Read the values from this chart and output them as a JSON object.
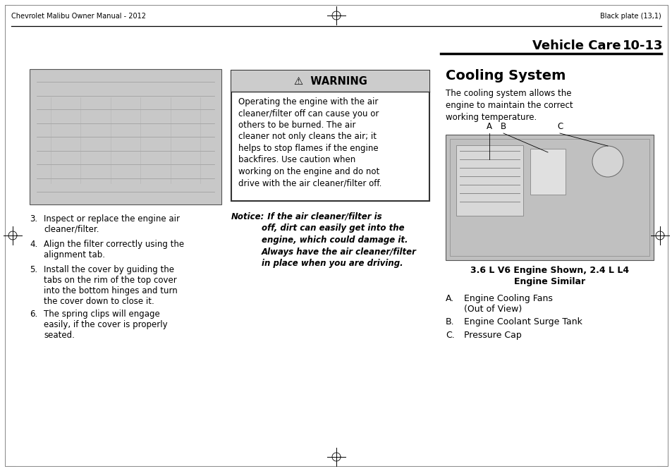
{
  "page_title_left": "Chevrolet Malibu Owner Manual - 2012",
  "page_title_right": "Black plate (13,1)",
  "section_header": "Vehicle Care",
  "section_number": "10-13",
  "cooling_system_title": "Cooling System",
  "cooling_system_intro": "The cooling system allows the\nengine to maintain the correct\nworking temperature.",
  "engine_caption_line1": "3.6 L V6 Engine Shown, 2.4 L L4",
  "engine_caption_line2": "Engine Similar",
  "label_A_text1": "Engine Cooling Fans",
  "label_A_text2": "(Out of View)",
  "label_B_text": "Engine Coolant Surge Tank",
  "label_C_text": "Pressure Cap",
  "warning_title": "⚠  WARNING",
  "warning_body": "Operating the engine with the air\ncleaner/filter off can cause you or\nothers to be burned. The air\ncleaner not only cleans the air; it\nhelps to stop flames if the engine\nbackfires. Use caution when\nworking on the engine and do not\ndrive with the air cleaner/filter off.",
  "notice_label": "Notice:",
  "notice_body": "  If the air cleaner/filter is\noff, dirt can easily get into the\nengine, which could damage it.\nAlways have the air cleaner/filter\nin place when you are driving.",
  "step3_num": "3.",
  "step3_text": "Inspect or replace the engine air\ncleaner/filter.",
  "step4_num": "4.",
  "step4_text": "Align the filter correctly using the\nalignment tab.",
  "step5_num": "5.",
  "step5_text": "Install the cover by guiding the\ntabs on the rim of the top cover\ninto the bottom hinges and turn\nthe cover down to close it.",
  "step6_num": "6.",
  "step6_text": "The spring clips will engage\neasily, if the cover is properly\nseated.",
  "bg_color": "#ffffff",
  "text_color": "#000000",
  "warning_header_bg": "#cccccc",
  "warning_body_bg": "#ffffff",
  "warning_border_color": "#333333",
  "section_line_color": "#000000"
}
